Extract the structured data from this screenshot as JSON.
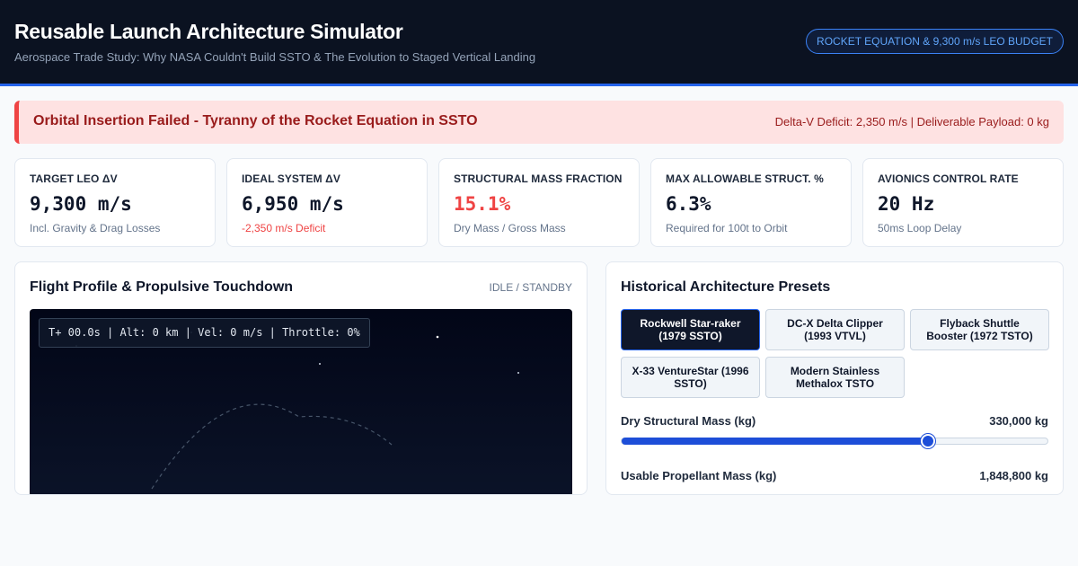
{
  "header": {
    "title": "Reusable Launch Architecture Simulator",
    "subtitle": "Aerospace Trade Study: Why NASA Couldn't Build SSTO & The Evolution to Staged Vertical Landing",
    "badge": "ROCKET EQUATION & 9,300 m/s LEO BUDGET"
  },
  "alert": {
    "title": "Orbital Insertion Failed - Tyranny of the Rocket Equation in SSTO",
    "detail": "Delta-V Deficit: 2,350 m/s | Deliverable Payload: 0 kg",
    "color": "#ef4444"
  },
  "metrics": [
    {
      "label": "TARGET LEO ΔV",
      "value": "9,300 m/s",
      "sub": "Incl. Gravity & Drag Losses"
    },
    {
      "label": "IDEAL SYSTEM ΔV",
      "value": "6,950 m/s",
      "sub": "-2,350 m/s Deficit"
    },
    {
      "label": "STRUCTURAL MASS FRACTION",
      "value": "15.1%",
      "sub": "Dry Mass / Gross Mass"
    },
    {
      "label": "MAX ALLOWABLE STRUCT. %",
      "value": "6.3%",
      "sub": "Required for 100t to Orbit"
    },
    {
      "label": "AVIONICS CONTROL RATE",
      "value": "20 Hz",
      "sub": "50ms Loop Delay"
    }
  ],
  "flight": {
    "title": "Flight Profile & Propulsive Touchdown",
    "status": "IDLE / STANDBY",
    "telemetry": "T+ 00.0s | Alt: 0 km | Vel: 0 m/s | Throttle: 0%"
  },
  "presets": {
    "title": "Historical Architecture Presets",
    "items": [
      {
        "label": "Rockwell Star-raker (1979 SSTO)",
        "active": true
      },
      {
        "label": "DC-X Delta Clipper (1993 VTVL)",
        "active": false
      },
      {
        "label": "Flyback Shuttle Booster (1972 TSTO)",
        "active": false
      },
      {
        "label": "X-33 VentureStar (1996 SSTO)",
        "active": false
      },
      {
        "label": "Modern Stainless Methalox TSTO",
        "active": false
      }
    ]
  },
  "params": {
    "dry_mass": {
      "label": "Dry Structural Mass (kg)",
      "value": "330,000 kg",
      "fill": 0.72
    },
    "propellant": {
      "label": "Usable Propellant Mass (kg)",
      "value": "1,848,800 kg"
    }
  },
  "colors": {
    "accent": "#2563eb",
    "danger": "#ef4444",
    "header_bg": "#0b1221"
  }
}
